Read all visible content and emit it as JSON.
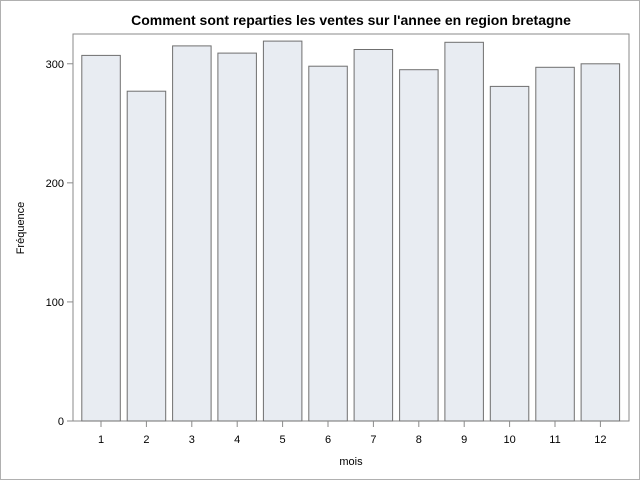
{
  "chart_data": {
    "type": "bar",
    "title": "Comment sont reparties les ventes sur l'annee en region bretagne",
    "xlabel": "mois",
    "ylabel": "Fréquence",
    "categories": [
      "1",
      "2",
      "3",
      "4",
      "5",
      "6",
      "7",
      "8",
      "9",
      "10",
      "11",
      "12"
    ],
    "values": [
      307,
      277,
      315,
      309,
      319,
      298,
      312,
      295,
      318,
      281,
      297,
      300
    ],
    "ylim": [
      0,
      325
    ],
    "yticks": [
      0,
      100,
      200,
      300
    ],
    "grid": false,
    "colors": {
      "bar_fill": "#e8ecf2",
      "bar_stroke": "#6f6f6f",
      "axis": "#8a8a8a"
    }
  }
}
